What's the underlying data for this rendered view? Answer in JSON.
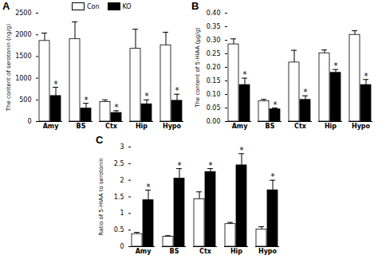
{
  "chart_data": [
    {
      "type": "bar",
      "title": "A",
      "ylabel": "The content of serotonin (ng/g)",
      "categories": [
        "Amy",
        "BS",
        "Ctx",
        "Hip",
        "Hypo"
      ],
      "series": [
        {
          "name": "Con",
          "color": "#ffffff",
          "values": [
            1860,
            1900,
            450,
            1680,
            1760
          ],
          "errors": [
            180,
            400,
            50,
            450,
            300
          ]
        },
        {
          "name": "KO",
          "color": "#000000",
          "values": [
            590,
            300,
            200,
            400,
            480
          ],
          "errors": [
            200,
            120,
            50,
            100,
            150
          ],
          "annotations": [
            "*",
            "*",
            "*",
            "*",
            "*"
          ]
        }
      ],
      "ylim": [
        0,
        2500
      ],
      "yticks": [
        0,
        500,
        1000,
        1500,
        2000,
        2500
      ],
      "legend": "top"
    },
    {
      "type": "bar",
      "title": "B",
      "ylabel": "The content of 5-HIAA (μg/g)",
      "categories": [
        "Amy",
        "BS",
        "Ctx",
        "Hip",
        "Hypo"
      ],
      "series": [
        {
          "name": "Con",
          "color": "#ffffff",
          "values": [
            0.285,
            0.075,
            0.218,
            0.252,
            0.32
          ],
          "errors": [
            0.02,
            0.007,
            0.045,
            0.012,
            0.015
          ]
        },
        {
          "name": "KO",
          "color": "#000000",
          "values": [
            0.135,
            0.045,
            0.08,
            0.18,
            0.135
          ],
          "errors": [
            0.025,
            0.005,
            0.015,
            0.012,
            0.02
          ],
          "annotations": [
            "*",
            "*",
            "*",
            "*",
            "*"
          ]
        }
      ],
      "ylim": [
        0,
        0.4
      ],
      "yticks": [
        {
          "value": 0,
          "label": "0.00"
        },
        0.05,
        {
          "value": 0.1,
          "label": "0.10"
        },
        0.15,
        {
          "value": 0.2,
          "label": "0.20"
        },
        0.25,
        {
          "value": 0.3,
          "label": "0.30"
        },
        0.35,
        {
          "value": 0.4,
          "label": "0.40"
        }
      ]
    },
    {
      "type": "bar",
      "title": "C",
      "ylabel": "Ratio of 5-HIAA to serotonin",
      "categories": [
        "Amy",
        "BS",
        "Ctx",
        "Hip",
        "Hypo"
      ],
      "series": [
        {
          "name": "Con",
          "color": "#ffffff",
          "values": [
            0.38,
            0.3,
            1.43,
            0.68,
            0.52
          ],
          "errors": [
            0.05,
            0.03,
            0.22,
            0.05,
            0.08
          ]
        },
        {
          "name": "KO",
          "color": "#000000",
          "values": [
            1.4,
            2.05,
            2.25,
            2.45,
            1.7
          ],
          "errors": [
            0.3,
            0.3,
            0.1,
            0.35,
            0.3
          ],
          "annotations": [
            "*",
            "*",
            "*",
            "*",
            "*"
          ]
        }
      ],
      "ylim": [
        0,
        3
      ],
      "yticks": [
        0,
        0.5,
        1,
        1.5,
        2,
        2.5,
        3
      ]
    }
  ]
}
